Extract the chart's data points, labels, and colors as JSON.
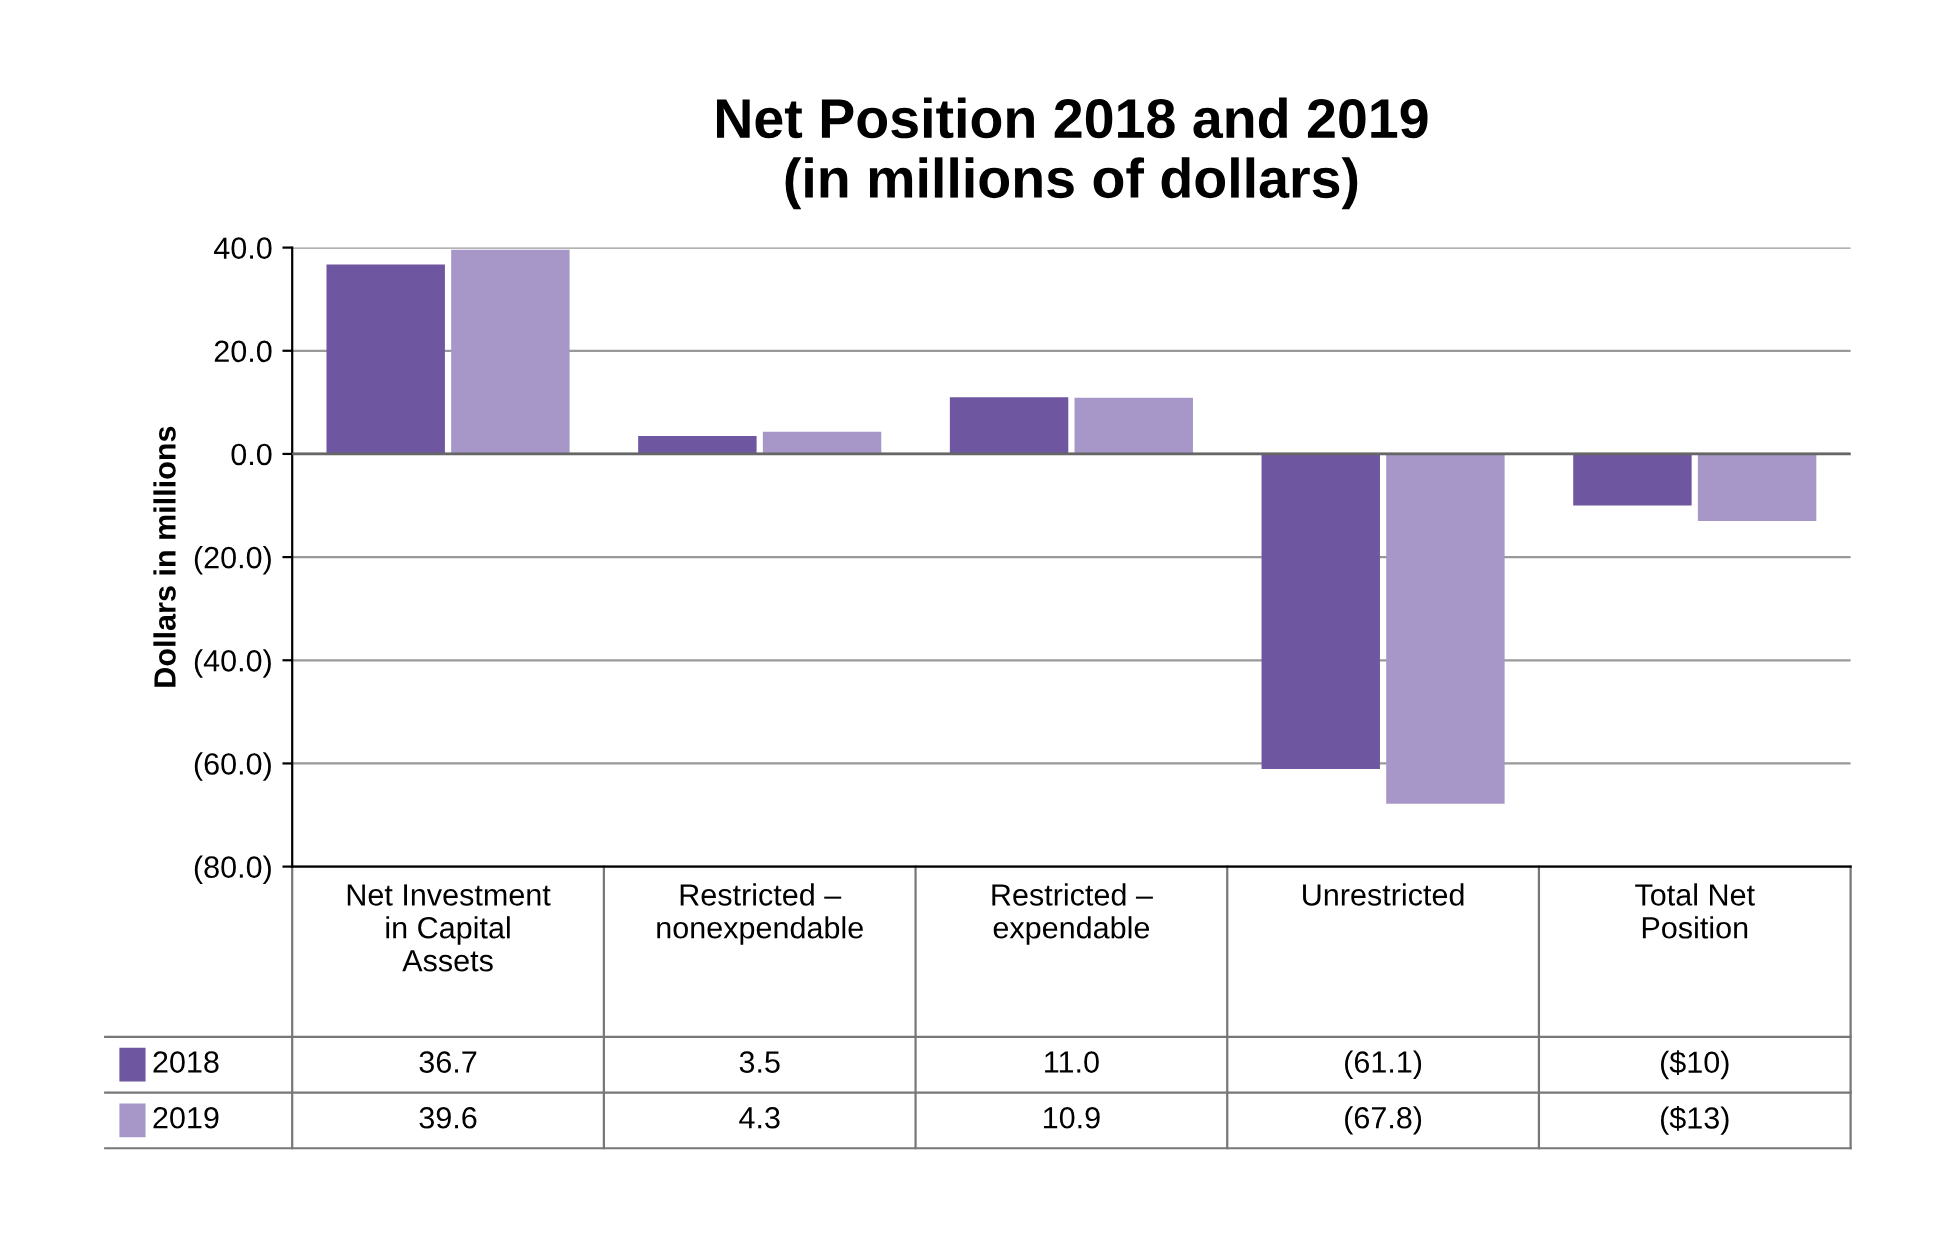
{
  "chart_data": {
    "type": "bar",
    "title": "Net Position 2018 and 2019\n(in millions of dollars)",
    "ylabel": "Dollars in millions",
    "categories": [
      "Net Investment\nin Capital\nAssets",
      "Restricted –\nnonexpendable",
      "Restricted –\nexpendable",
      "Unrestricted",
      "Total Net\nPosition"
    ],
    "series": [
      {
        "name": "2018",
        "color": "#6f56a0",
        "values": [
          36.7,
          3.5,
          11.0,
          -61.1,
          -10
        ],
        "value_labels": [
          "36.7",
          "3.5",
          "11.0",
          "(61.1)",
          "($10)"
        ]
      },
      {
        "name": "2019",
        "color": "#a797c9",
        "values": [
          39.6,
          4.3,
          10.9,
          -67.8,
          -13
        ],
        "value_labels": [
          "39.6",
          "4.3",
          "10.9",
          "(67.8)",
          "($13)"
        ]
      }
    ],
    "ylim": [
      -80,
      40
    ],
    "yticks": [
      {
        "value": 40,
        "label": "40.0"
      },
      {
        "value": 20,
        "label": "20.0"
      },
      {
        "value": 0,
        "label": "0.0"
      },
      {
        "value": -20,
        "label": "(20.0)"
      },
      {
        "value": -40,
        "label": "(40.0)"
      },
      {
        "value": -60,
        "label": "(60.0)"
      },
      {
        "value": -80,
        "label": "(80.0)"
      }
    ],
    "grid": "y",
    "legend": "bottom"
  }
}
